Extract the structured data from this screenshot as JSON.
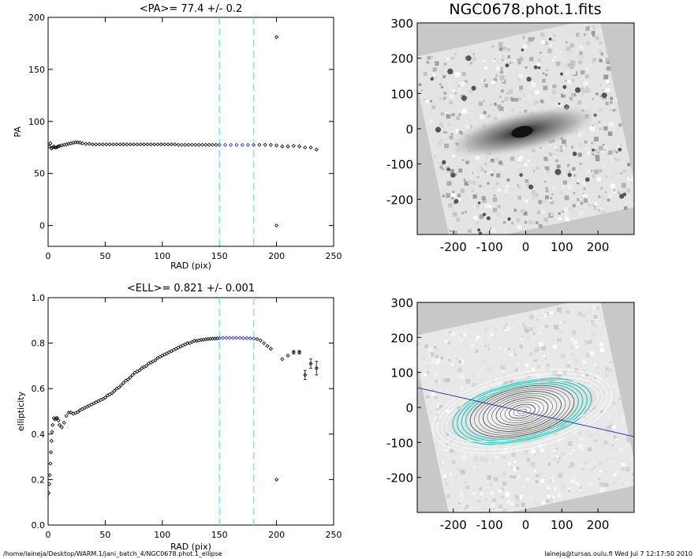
{
  "chart_data": [
    {
      "type": "scatter",
      "title": "<PA>=  77.4 +/-   0.2",
      "xlabel": "RAD (pix)",
      "ylabel": "PA",
      "xlim": [
        0,
        250
      ],
      "ylim": [
        -20,
        200
      ],
      "xticks": [
        0,
        50,
        100,
        150,
        200,
        250
      ],
      "yticks": [
        0,
        50,
        100,
        150,
        200
      ],
      "vlines": [
        150,
        180
      ],
      "series": [
        {
          "marker": "diamond",
          "x": [
            1,
            2,
            3,
            4,
            5,
            6,
            7,
            8,
            9,
            10,
            12,
            14,
            16,
            18,
            20,
            22,
            24,
            26,
            28,
            30,
            33,
            36,
            39,
            42,
            45,
            48,
            51,
            54,
            57,
            60,
            63,
            66,
            69,
            72,
            75,
            78,
            81,
            84,
            87,
            90,
            93,
            96,
            99,
            102,
            105,
            108,
            111,
            114,
            117,
            120,
            123,
            126,
            129,
            132,
            135,
            138,
            141,
            144,
            147,
            150,
            155,
            160,
            165,
            170,
            175,
            180,
            185,
            190,
            195,
            200,
            205,
            210,
            215,
            220,
            225,
            230,
            235
          ],
          "y": [
            76,
            79,
            74,
            75,
            76,
            75,
            75,
            75.5,
            76,
            76.5,
            77,
            77.5,
            78,
            78.5,
            79,
            79.5,
            80,
            80,
            79.5,
            79,
            78.5,
            78.5,
            78,
            78,
            78,
            78,
            78,
            78,
            78,
            78,
            78,
            78,
            78,
            78,
            78,
            78,
            78,
            78,
            78,
            78,
            78,
            78,
            78,
            78,
            78,
            78,
            78,
            77.5,
            77.5,
            77.5,
            77.5,
            77.5,
            77.5,
            77.5,
            77.5,
            77.5,
            77.5,
            77.5,
            77.5,
            77.4,
            77.4,
            77.4,
            77.4,
            77.4,
            77.4,
            77.4,
            77.5,
            77.5,
            77.5,
            77,
            76,
            76,
            76.5,
            76,
            75,
            75,
            73
          ]
        },
        {
          "marker": "diamond",
          "x": [
            200,
            200
          ],
          "y": [
            181,
            0
          ]
        }
      ],
      "fitted_range": [
        150,
        180
      ]
    },
    {
      "type": "scatter",
      "title": "<ELL>= 0.821 +/-  0.001",
      "xlabel": "RAD (pix)",
      "ylabel": "ellipticity",
      "xlim": [
        0,
        250
      ],
      "ylim": [
        0,
        1
      ],
      "xticks": [
        0,
        50,
        100,
        150,
        200,
        250
      ],
      "yticks": [
        "0.0",
        "0.2",
        "0.4",
        "0.6",
        "0.8",
        "1.0"
      ],
      "vlines": [
        150,
        180
      ],
      "series": [
        {
          "marker": "diamond",
          "x": [
            0.5,
            1,
            1.5,
            2,
            2.5,
            3,
            3.5,
            4,
            5,
            6,
            7,
            8,
            9,
            10,
            12,
            14,
            16,
            18,
            20,
            22,
            24,
            26,
            28,
            30,
            32,
            34,
            36,
            38,
            40,
            42,
            44,
            46,
            48,
            50,
            52,
            54,
            56,
            58,
            60,
            62,
            64,
            66,
            68,
            70,
            72,
            74,
            76,
            78,
            80,
            82,
            84,
            86,
            88,
            90,
            92,
            94,
            96,
            98,
            100,
            102,
            104,
            106,
            108,
            110,
            112,
            114,
            116,
            118,
            120,
            122,
            124,
            126,
            128,
            130,
            132,
            134,
            136,
            138,
            140,
            142,
            144,
            146,
            148,
            150,
            153,
            156,
            159,
            162,
            165,
            168,
            171,
            174,
            177,
            180,
            183,
            186,
            189,
            192,
            195
          ],
          "y": [
            0.14,
            0.18,
            0.22,
            0.27,
            0.32,
            0.37,
            0.41,
            0.44,
            0.47,
            0.465,
            0.47,
            0.47,
            0.46,
            0.44,
            0.43,
            0.45,
            0.48,
            0.495,
            0.495,
            0.49,
            0.493,
            0.497,
            0.505,
            0.51,
            0.515,
            0.52,
            0.525,
            0.53,
            0.535,
            0.54,
            0.545,
            0.55,
            0.555,
            0.56,
            0.57,
            0.575,
            0.58,
            0.59,
            0.6,
            0.605,
            0.615,
            0.625,
            0.635,
            0.64,
            0.65,
            0.66,
            0.67,
            0.675,
            0.68,
            0.69,
            0.695,
            0.7,
            0.71,
            0.715,
            0.72,
            0.725,
            0.735,
            0.74,
            0.745,
            0.75,
            0.755,
            0.76,
            0.765,
            0.77,
            0.775,
            0.78,
            0.785,
            0.79,
            0.795,
            0.8,
            0.8,
            0.805,
            0.81,
            0.81,
            0.812,
            0.815,
            0.815,
            0.817,
            0.818,
            0.819,
            0.82,
            0.82,
            0.821,
            0.822,
            0.823,
            0.823,
            0.823,
            0.823,
            0.823,
            0.823,
            0.822,
            0.822,
            0.821,
            0.82,
            0.818,
            0.812,
            0.8,
            0.787,
            0.775
          ]
        },
        {
          "marker": "diamond",
          "x": [
            200,
            205,
            210,
            215,
            220,
            225,
            230,
            235
          ],
          "y": [
            0.2,
            0.73,
            0.745,
            0.76,
            0.76,
            0.66,
            0.71,
            0.69
          ],
          "err": [
            0,
            0,
            0,
            0.007,
            0.007,
            0.02,
            0.02,
            0.03
          ]
        }
      ],
      "fitted_range": [
        150,
        180
      ]
    },
    {
      "type": "heatmap",
      "title": "NGC0678.phot.1.fits",
      "xlim": [
        -300,
        300
      ],
      "ylim": [
        -300,
        300
      ],
      "xticks": [
        -200,
        -100,
        0,
        100,
        200
      ],
      "yticks": [
        300,
        200,
        100,
        0,
        -100,
        -200
      ],
      "grid": false,
      "colormap": "gray-reversed",
      "ellipse_overlay": false
    },
    {
      "type": "heatmap",
      "title": "",
      "xlim": [
        -300,
        300
      ],
      "ylim": [
        -300,
        300
      ],
      "xticks": [
        -200,
        -100,
        0,
        100,
        200
      ],
      "yticks": [
        300,
        200,
        100,
        0,
        -100,
        -200
      ],
      "grid": false,
      "colormap": "gray-reversed",
      "ellipse_overlay": true,
      "position_angle_deg": 77.4,
      "ellipticity": 0.821
    }
  ],
  "footer": {
    "left": "/home/laineja/Desktop/WARM.1/jani_batch_4/NGC0678.phot.1_ellipse",
    "right": "laineja@tursas.oulu.fi  Wed Jul  7 12:17:50 2010"
  },
  "colors": {
    "vline": "#7fe6e6",
    "fit_points": "#1a2a9a",
    "ellipse_inner": "#40c8c0",
    "pa_line": "#2a3ab0",
    "image_bg": "#c8c8c8"
  }
}
